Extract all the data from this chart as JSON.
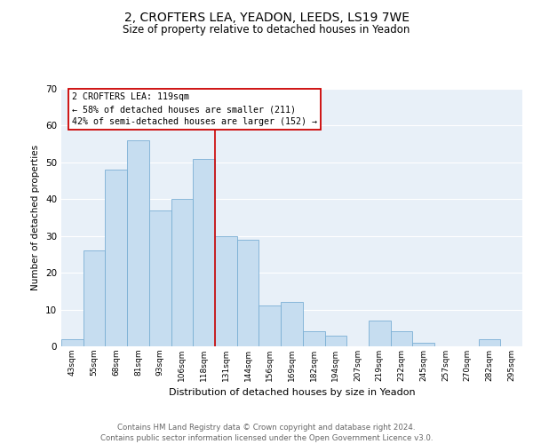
{
  "title": "2, CROFTERS LEA, YEADON, LEEDS, LS19 7WE",
  "subtitle": "Size of property relative to detached houses in Yeadon",
  "xlabel": "Distribution of detached houses by size in Yeadon",
  "ylabel": "Number of detached properties",
  "bin_labels": [
    "43sqm",
    "55sqm",
    "68sqm",
    "81sqm",
    "93sqm",
    "106sqm",
    "118sqm",
    "131sqm",
    "144sqm",
    "156sqm",
    "169sqm",
    "182sqm",
    "194sqm",
    "207sqm",
    "219sqm",
    "232sqm",
    "245sqm",
    "257sqm",
    "270sqm",
    "282sqm",
    "295sqm"
  ],
  "bar_values": [
    2,
    26,
    48,
    56,
    37,
    40,
    51,
    30,
    29,
    11,
    12,
    4,
    3,
    0,
    7,
    4,
    1,
    0,
    0,
    2,
    0
  ],
  "bar_color": "#c6ddf0",
  "bar_edge_color": "#7aafd4",
  "ylim": [
    0,
    70
  ],
  "yticks": [
    0,
    10,
    20,
    30,
    40,
    50,
    60,
    70
  ],
  "property_line_bin": 6,
  "property_line_color": "#cc0000",
  "annotation_title": "2 CROFTERS LEA: 119sqm",
  "annotation_line1": "← 58% of detached houses are smaller (211)",
  "annotation_line2": "42% of semi-detached houses are larger (152) →",
  "annotation_box_color": "#ffffff",
  "annotation_box_edge": "#cc0000",
  "footer_line1": "Contains HM Land Registry data © Crown copyright and database right 2024.",
  "footer_line2": "Contains public sector information licensed under the Open Government Licence v3.0.",
  "bg_color": "#e8f0f8"
}
